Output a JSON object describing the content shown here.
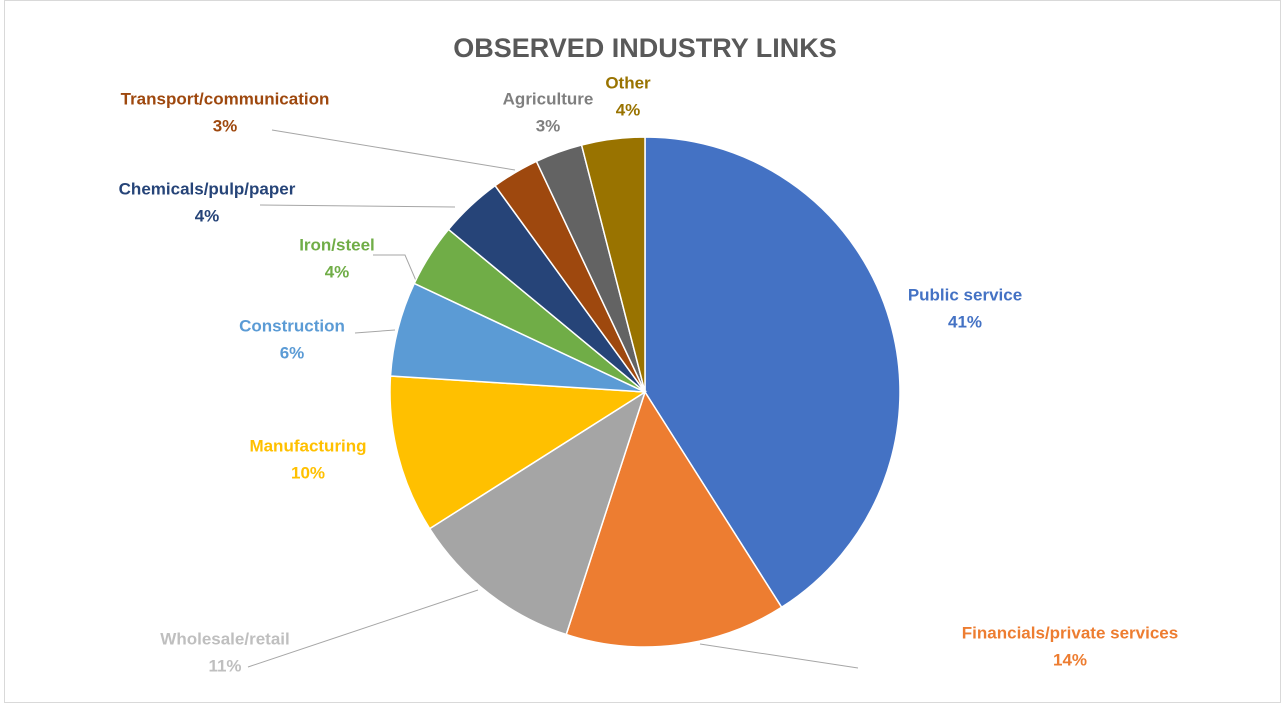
{
  "chart_data": {
    "type": "pie",
    "title": "OBSERVED INDUSTRY LINKS",
    "categories": [
      "Public service",
      "Financials/private services",
      "Wholesale/retail",
      "Manufacturing",
      "Construction",
      "Iron/steel",
      "Chemicals/pulp/paper",
      "Transport/communication",
      "Agriculture",
      "Other"
    ],
    "values": [
      41,
      14,
      11,
      10,
      6,
      4,
      4,
      3,
      3,
      4
    ],
    "value_labels": [
      "41%",
      "14%",
      "11%",
      "10%",
      "6%",
      "4%",
      "4%",
      "3%",
      "3%",
      "4%"
    ],
    "colors": [
      "#4472c4",
      "#ed7d31",
      "#a5a5a5",
      "#ffc000",
      "#5b9bd5",
      "#70ad47",
      "#264478",
      "#9e480e",
      "#636363",
      "#997300"
    ]
  }
}
